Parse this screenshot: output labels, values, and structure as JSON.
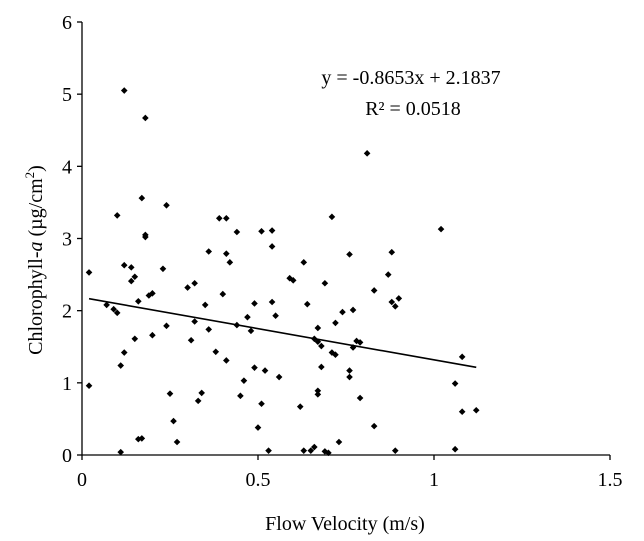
{
  "chart_data": {
    "type": "scatter",
    "xlabel": "Flow Velocity (m/s)",
    "ylabel_prefix": "Chlorophyll-",
    "ylabel_italic": "a",
    "ylabel_unit_open": " (µg/cm",
    "ylabel_unit_sup": "2",
    "ylabel_unit_close": ")",
    "xlim": [
      0,
      1.5
    ],
    "ylim": [
      0,
      6
    ],
    "x_ticks": [
      {
        "value": 0,
        "label": "0"
      },
      {
        "value": 0.5,
        "label": "0.5"
      },
      {
        "value": 1,
        "label": "1"
      },
      {
        "value": 1.5,
        "label": "1.5"
      }
    ],
    "y_ticks": [
      {
        "value": 0,
        "label": "0"
      },
      {
        "value": 1,
        "label": "1"
      },
      {
        "value": 2,
        "label": "2"
      },
      {
        "value": 3,
        "label": "3"
      },
      {
        "value": 4,
        "label": "4"
      },
      {
        "value": 5,
        "label": "5"
      },
      {
        "value": 6,
        "label": "6"
      }
    ],
    "trendline": {
      "slope": -0.8653,
      "intercept": 2.1837,
      "x_range": [
        0.02,
        1.12
      ],
      "equation": "y = -0.8653x + 2.1837",
      "r_squared": "R² = 0.0518"
    },
    "grid": false,
    "points": [
      [
        0.02,
        2.53
      ],
      [
        0.02,
        0.96
      ],
      [
        0.07,
        2.08
      ],
      [
        0.09,
        2.02
      ],
      [
        0.1,
        3.32
      ],
      [
        0.1,
        1.97
      ],
      [
        0.11,
        1.24
      ],
      [
        0.11,
        0.04
      ],
      [
        0.12,
        2.63
      ],
      [
        0.12,
        1.42
      ],
      [
        0.12,
        5.05
      ],
      [
        0.14,
        2.41
      ],
      [
        0.14,
        2.6
      ],
      [
        0.15,
        2.47
      ],
      [
        0.15,
        1.61
      ],
      [
        0.16,
        2.13
      ],
      [
        0.16,
        0.22
      ],
      [
        0.17,
        0.23
      ],
      [
        0.17,
        3.56
      ],
      [
        0.18,
        3.05
      ],
      [
        0.18,
        3.02
      ],
      [
        0.18,
        4.67
      ],
      [
        0.19,
        2.21
      ],
      [
        0.2,
        2.24
      ],
      [
        0.2,
        1.66
      ],
      [
        0.23,
        2.58
      ],
      [
        0.24,
        3.46
      ],
      [
        0.24,
        1.79
      ],
      [
        0.25,
        0.85
      ],
      [
        0.26,
        0.47
      ],
      [
        0.27,
        0.18
      ],
      [
        0.3,
        2.32
      ],
      [
        0.31,
        1.59
      ],
      [
        0.32,
        2.38
      ],
      [
        0.32,
        1.85
      ],
      [
        0.33,
        0.75
      ],
      [
        0.34,
        0.86
      ],
      [
        0.35,
        2.08
      ],
      [
        0.36,
        2.82
      ],
      [
        0.36,
        1.74
      ],
      [
        0.38,
        1.43
      ],
      [
        0.39,
        3.28
      ],
      [
        0.4,
        2.23
      ],
      [
        0.41,
        3.28
      ],
      [
        0.41,
        2.79
      ],
      [
        0.41,
        1.31
      ],
      [
        0.42,
        2.67
      ],
      [
        0.44,
        3.09
      ],
      [
        0.44,
        1.8
      ],
      [
        0.45,
        0.82
      ],
      [
        0.46,
        1.03
      ],
      [
        0.47,
        1.91
      ],
      [
        0.48,
        1.72
      ],
      [
        0.49,
        2.1
      ],
      [
        0.49,
        1.21
      ],
      [
        0.5,
        0.38
      ],
      [
        0.51,
        3.1
      ],
      [
        0.51,
        0.71
      ],
      [
        0.52,
        1.17
      ],
      [
        0.53,
        0.06
      ],
      [
        0.54,
        3.11
      ],
      [
        0.54,
        2.89
      ],
      [
        0.54,
        2.12
      ],
      [
        0.55,
        1.93
      ],
      [
        0.56,
        1.08
      ],
      [
        0.59,
        2.45
      ],
      [
        0.6,
        2.42
      ],
      [
        0.62,
        0.67
      ],
      [
        0.63,
        2.67
      ],
      [
        0.63,
        0.06
      ],
      [
        0.64,
        2.09
      ],
      [
        0.65,
        0.06
      ],
      [
        0.66,
        1.61
      ],
      [
        0.66,
        0.11
      ],
      [
        0.67,
        1.76
      ],
      [
        0.67,
        1.57
      ],
      [
        0.67,
        0.89
      ],
      [
        0.67,
        0.84
      ],
      [
        0.68,
        1.51
      ],
      [
        0.68,
        1.22
      ],
      [
        0.69,
        2.38
      ],
      [
        0.69,
        0.05
      ],
      [
        0.7,
        0.03
      ],
      [
        0.71,
        3.3
      ],
      [
        0.71,
        1.42
      ],
      [
        0.72,
        1.83
      ],
      [
        0.72,
        1.39
      ],
      [
        0.73,
        0.18
      ],
      [
        0.74,
        1.98
      ],
      [
        0.76,
        2.78
      ],
      [
        0.76,
        1.17
      ],
      [
        0.76,
        1.08
      ],
      [
        0.77,
        2.01
      ],
      [
        0.77,
        1.49
      ],
      [
        0.78,
        1.58
      ],
      [
        0.79,
        1.56
      ],
      [
        0.79,
        0.79
      ],
      [
        0.81,
        4.18
      ],
      [
        0.83,
        2.28
      ],
      [
        0.83,
        0.4
      ],
      [
        0.87,
        2.5
      ],
      [
        0.88,
        2.81
      ],
      [
        0.88,
        2.12
      ],
      [
        0.89,
        2.06
      ],
      [
        0.89,
        0.06
      ],
      [
        0.9,
        2.17
      ],
      [
        1.02,
        3.13
      ],
      [
        1.06,
        0.99
      ],
      [
        1.06,
        0.08
      ],
      [
        1.08,
        1.36
      ],
      [
        1.08,
        0.6
      ],
      [
        1.12,
        0.62
      ]
    ]
  }
}
